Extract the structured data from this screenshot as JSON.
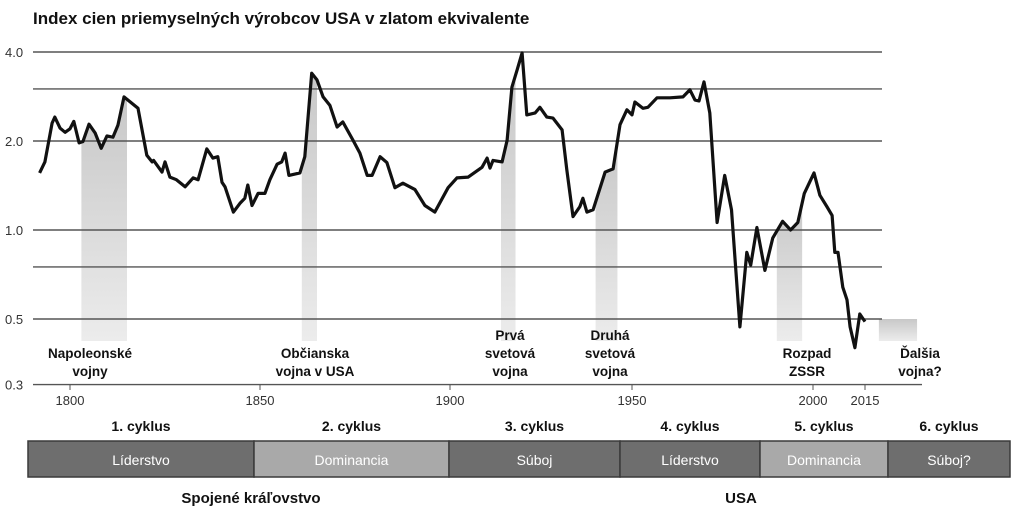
{
  "chart_data": {
    "type": "line",
    "title": "Index cien priemyselných výrobcov USA v zlatom ekvivalente",
    "xlabel": "",
    "ylabel": "",
    "y_scale": "log",
    "ylim": [
      0.3,
      4.0
    ],
    "xlim": [
      1790,
      2035
    ],
    "grid": true,
    "y_ticks": [
      {
        "value": 4.0,
        "label": "4.0"
      },
      {
        "value": 3.0,
        "label": ""
      },
      {
        "value": 2.0,
        "label": "2.0"
      },
      {
        "value": 1.0,
        "label": "1.0"
      },
      {
        "value": 0.75,
        "label": ""
      },
      {
        "value": 0.5,
        "label": "0.5"
      },
      {
        "value": 0.3,
        "label": "0.3"
      }
    ],
    "x_ticks": [
      {
        "value": 1800,
        "label": "1800"
      },
      {
        "value": 1850,
        "label": "1850"
      },
      {
        "value": 1900,
        "label": "1900"
      },
      {
        "value": 1950,
        "label": "1950"
      },
      {
        "value": 2000,
        "label": "2000"
      },
      {
        "value": 2015,
        "label": "2015"
      }
    ],
    "series": [
      {
        "color": "#111111",
        "points": [
          [
            1792,
            1.56
          ],
          [
            1793.4,
            1.7
          ],
          [
            1795.3,
            2.3
          ],
          [
            1796,
            2.41
          ],
          [
            1797.4,
            2.21
          ],
          [
            1798.7,
            2.14
          ],
          [
            1800,
            2.2
          ],
          [
            1801,
            2.33
          ],
          [
            1802.4,
            1.97
          ],
          [
            1803.4,
            1.99
          ],
          [
            1805,
            2.28
          ],
          [
            1806.6,
            2.13
          ],
          [
            1808.2,
            1.89
          ],
          [
            1809.7,
            2.08
          ],
          [
            1811.3,
            2.06
          ],
          [
            1812.6,
            2.26
          ],
          [
            1814.2,
            2.82
          ],
          [
            1817.9,
            2.58
          ],
          [
            1820.2,
            1.79
          ],
          [
            1821.6,
            1.7
          ],
          [
            1822,
            1.72
          ],
          [
            1824.2,
            1.57
          ],
          [
            1825,
            1.7
          ],
          [
            1826.3,
            1.51
          ],
          [
            1828,
            1.48
          ],
          [
            1830.3,
            1.4
          ],
          [
            1832.4,
            1.5
          ],
          [
            1833.7,
            1.48
          ],
          [
            1836,
            1.88
          ],
          [
            1837.6,
            1.75
          ],
          [
            1838.9,
            1.77
          ],
          [
            1840,
            1.45
          ],
          [
            1840.8,
            1.4
          ],
          [
            1843,
            1.15
          ],
          [
            1844.7,
            1.23
          ],
          [
            1846,
            1.28
          ],
          [
            1846.8,
            1.42
          ],
          [
            1847.9,
            1.21
          ],
          [
            1849.5,
            1.33
          ],
          [
            1851.3,
            1.33
          ],
          [
            1852.6,
            1.48
          ],
          [
            1854.5,
            1.67
          ],
          [
            1855.7,
            1.7
          ],
          [
            1856.6,
            1.82
          ],
          [
            1857.6,
            1.53
          ],
          [
            1860.5,
            1.56
          ],
          [
            1861.8,
            1.77
          ],
          [
            1863.6,
            3.39
          ],
          [
            1865,
            3.22
          ],
          [
            1866.6,
            2.82
          ],
          [
            1868.4,
            2.64
          ],
          [
            1870.3,
            2.23
          ],
          [
            1871.8,
            2.32
          ],
          [
            1874.5,
            2.01
          ],
          [
            1876.3,
            1.82
          ],
          [
            1878.2,
            1.53
          ],
          [
            1879.5,
            1.53
          ],
          [
            1881.6,
            1.77
          ],
          [
            1883.4,
            1.69
          ],
          [
            1885.5,
            1.39
          ],
          [
            1887.6,
            1.44
          ],
          [
            1890.8,
            1.37
          ],
          [
            1893.4,
            1.21
          ],
          [
            1896,
            1.15
          ],
          [
            1899.5,
            1.39
          ],
          [
            1901.9,
            1.5
          ],
          [
            1905,
            1.51
          ],
          [
            1908.8,
            1.63
          ],
          [
            1910.2,
            1.75
          ],
          [
            1911,
            1.62
          ],
          [
            1911.8,
            1.72
          ],
          [
            1914.3,
            1.7
          ],
          [
            1915.7,
            2.01
          ],
          [
            1917,
            3.04
          ],
          [
            1918.4,
            3.47
          ],
          [
            1919.8,
            3.97
          ],
          [
            1921.1,
            2.45
          ],
          [
            1923.4,
            2.49
          ],
          [
            1924.7,
            2.6
          ],
          [
            1926.6,
            2.41
          ],
          [
            1928.3,
            2.39
          ],
          [
            1930.8,
            2.18
          ],
          [
            1932.1,
            1.6
          ],
          [
            1933.8,
            1.11
          ],
          [
            1935.7,
            1.2
          ],
          [
            1936.5,
            1.28
          ],
          [
            1937.6,
            1.15
          ],
          [
            1939.3,
            1.17
          ],
          [
            1942.6,
            1.57
          ],
          [
            1944.8,
            1.61
          ],
          [
            1946.7,
            2.27
          ],
          [
            1948.6,
            2.55
          ],
          [
            1950,
            2.45
          ],
          [
            1950.8,
            2.71
          ],
          [
            1953,
            2.58
          ],
          [
            1954.4,
            2.6
          ],
          [
            1956.9,
            2.8
          ],
          [
            1960.5,
            2.8
          ],
          [
            1964.1,
            2.82
          ],
          [
            1966,
            2.98
          ],
          [
            1967.4,
            2.75
          ],
          [
            1968.5,
            2.73
          ],
          [
            1969.9,
            3.17
          ],
          [
            1971.5,
            2.49
          ],
          [
            1973.5,
            1.06
          ],
          [
            1975.6,
            1.53
          ],
          [
            1977.5,
            1.17
          ],
          [
            1979.8,
            0.47
          ],
          [
            1981.7,
            0.84
          ],
          [
            1982.8,
            0.76
          ],
          [
            1984.5,
            1.02
          ],
          [
            1986.7,
            0.73
          ],
          [
            1988.9,
            0.94
          ],
          [
            1991.6,
            1.07
          ],
          [
            1993.8,
            1.0
          ],
          [
            1995.8,
            1.06
          ],
          [
            1997.6,
            1.33
          ],
          [
            2000.3,
            1.56
          ],
          [
            2002,
            1.31
          ],
          [
            2004,
            1.2
          ],
          [
            2005.5,
            1.12
          ],
          [
            2006.3,
            0.84
          ],
          [
            2007.2,
            0.84
          ],
          [
            2008.6,
            0.64
          ],
          [
            2009.8,
            0.58
          ],
          [
            2010.7,
            0.47
          ],
          [
            2012.1,
            0.4
          ],
          [
            2013.5,
            0.52
          ],
          [
            2015,
            0.49
          ]
        ]
      }
    ],
    "shaded_periods": [
      {
        "start": 1803,
        "end": 1815,
        "label": [
          "Napoleonské",
          "vojny"
        ]
      },
      {
        "start": 1861,
        "end": 1865,
        "label": [
          "Občianska",
          "vojna v USA"
        ]
      },
      {
        "start": 1914,
        "end": 1918,
        "label": [
          "Prvá",
          "svetová",
          "vojna"
        ]
      },
      {
        "start": 1940,
        "end": 1946,
        "label": [
          "Druhá",
          "svetová",
          "vojna"
        ]
      },
      {
        "start": 1990,
        "end": 1997,
        "label": [
          "Rozpad",
          "ZSSR"
        ]
      },
      {
        "start": 2019,
        "end": 2030,
        "top": 0.5,
        "label": [
          "Ďalšia",
          "vojna?"
        ]
      }
    ],
    "cycles": [
      {
        "cycle": "1. cyklus",
        "phase": "Líderstvo",
        "color": "#6e6e6e"
      },
      {
        "cycle": "2. cyklus",
        "phase": "Dominancia",
        "color": "#a9a9a9"
      },
      {
        "cycle": "3. cyklus",
        "phase": "Súboj",
        "color": "#6e6e6e"
      },
      {
        "cycle": "4. cyklus",
        "phase": "Líderstvo",
        "color": "#6e6e6e"
      },
      {
        "cycle": "5. cyklus",
        "phase": "Dominancia",
        "color": "#a9a9a9"
      },
      {
        "cycle": "6. cyklus",
        "phase": "Súboj?",
        "color": "#6e6e6e"
      }
    ],
    "countries": [
      "Spojené kráľovstvo",
      "USA"
    ]
  }
}
